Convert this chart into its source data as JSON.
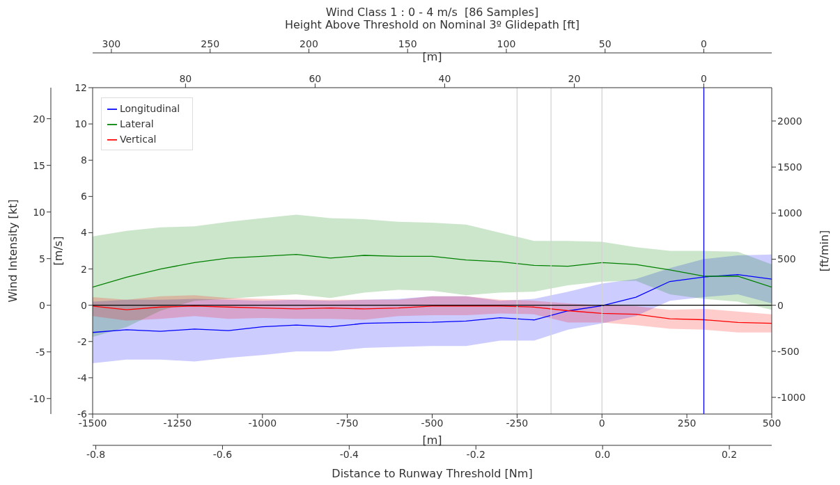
{
  "chart_data": {
    "type": "line",
    "title": "Wind Class 1 : 0 - 4 m/s  [86 Samples]",
    "xlabel": "[m]",
    "ylabel": "[m/s]",
    "y2label": "[ft/min]",
    "y3label": "Wind Intensity [kt]",
    "x2label": "Distance to Runway Threshold [Nm]",
    "annotations": [
      "Height Above Threshold on Nominal 3º Glidepath [ft]",
      "300",
      "250",
      "200",
      "150",
      "100",
      "50",
      "0",
      "[m]",
      "80",
      "60",
      "40",
      "20",
      "0"
    ],
    "x": [
      -1500,
      -1400,
      -1300,
      -1200,
      -1100,
      -1000,
      -900,
      -800,
      -700,
      -600,
      -500,
      -400,
      -300,
      -200,
      -100,
      0,
      100,
      200,
      300,
      400,
      500
    ],
    "series": [
      {
        "name": "Longitudinal",
        "color": "#0000ff",
        "values": [
          -1.5,
          -1.35,
          -1.44,
          -1.31,
          -1.4,
          -1.19,
          -1.09,
          -1.19,
          -1.0,
          -0.96,
          -0.94,
          -0.87,
          -0.69,
          -0.81,
          -0.31,
          -0.03,
          0.44,
          1.31,
          1.56,
          1.69,
          1.44
        ],
        "lower": [
          -3.2,
          -3.0,
          -3.0,
          -3.1,
          -2.9,
          -2.75,
          -2.55,
          -2.55,
          -2.35,
          -2.3,
          -2.25,
          -2.25,
          -1.95,
          -1.95,
          -1.35,
          -1.0,
          -0.6,
          0.25,
          0.45,
          0.6,
          0.1
        ],
        "upper": [
          0.2,
          0.3,
          0.3,
          0.35,
          0.3,
          0.25,
          0.3,
          0.25,
          0.3,
          0.35,
          0.5,
          0.5,
          0.25,
          0.35,
          0.75,
          1.2,
          1.45,
          2.05,
          2.55,
          2.75,
          2.8
        ]
      },
      {
        "name": "Lateral",
        "color": "#008000",
        "values": [
          1.0,
          1.55,
          2.0,
          2.35,
          2.6,
          2.7,
          2.8,
          2.6,
          2.75,
          2.7,
          2.7,
          2.5,
          2.4,
          2.2,
          2.15,
          2.35,
          2.25,
          1.95,
          1.6,
          1.6,
          1.0
        ],
        "lower": [
          -1.75,
          -1.2,
          -0.3,
          0.25,
          0.35,
          0.5,
          0.6,
          0.4,
          0.7,
          0.85,
          0.8,
          0.55,
          0.7,
          0.75,
          1.1,
          1.3,
          1.35,
          0.6,
          0.35,
          0.2,
          -0.25
        ],
        "upper": [
          3.8,
          4.1,
          4.3,
          4.35,
          4.6,
          4.8,
          5.0,
          4.8,
          4.75,
          4.6,
          4.55,
          4.45,
          4.0,
          3.55,
          3.55,
          3.5,
          3.2,
          3.0,
          3.0,
          2.95,
          2.25
        ]
      },
      {
        "name": "Vertical",
        "color": "#ff0000",
        "values": [
          -0.05,
          -0.25,
          -0.1,
          -0.05,
          -0.1,
          -0.15,
          -0.2,
          -0.15,
          -0.2,
          -0.15,
          -0.05,
          -0.05,
          -0.05,
          -0.1,
          -0.3,
          -0.45,
          -0.5,
          -0.75,
          -0.8,
          -0.95,
          -1.0
        ],
        "lower": [
          -0.6,
          -0.85,
          -0.75,
          -0.6,
          -0.75,
          -0.7,
          -0.75,
          -0.75,
          -0.8,
          -0.6,
          -0.55,
          -0.55,
          -0.45,
          -0.5,
          -0.95,
          -0.95,
          -1.1,
          -1.3,
          -1.35,
          -1.5,
          -1.5
        ],
        "upper": [
          0.45,
          0.3,
          0.5,
          0.55,
          0.4,
          0.35,
          0.3,
          0.3,
          0.3,
          0.3,
          0.5,
          0.5,
          0.3,
          0.25,
          0.1,
          0.0,
          -0.05,
          -0.25,
          -0.2,
          -0.35,
          -0.5
        ]
      }
    ],
    "xlim": [
      -1500,
      500
    ],
    "xticks": [
      -1500,
      -1250,
      -1000,
      -750,
      -500,
      -250,
      0,
      250,
      500
    ],
    "x2lim": [
      -0.805,
      0.267
    ],
    "x2ticks": [
      -0.8,
      -0.6,
      -0.4,
      -0.2,
      {
        "value": 0,
        "label": "0.0"
      },
      0.2
    ],
    "ylim": [
      -6,
      12
    ],
    "yticks": [
      -6,
      -4,
      -2,
      0,
      2,
      4,
      6,
      8,
      10,
      12
    ],
    "y2lim": [
      -1181,
      2362
    ],
    "y2ticks": [
      -1000,
      -500,
      0,
      500,
      1000,
      1500,
      2000
    ],
    "y3lim": [
      -11.66,
      23.33
    ],
    "y3ticks": [
      -10,
      -5,
      0,
      5,
      10,
      15,
      20
    ],
    "ref_lines": [
      {
        "axis": "x",
        "value": -250,
        "color": "#d3d3d3"
      },
      {
        "axis": "x",
        "value": -150,
        "color": "#d3d3d3"
      },
      {
        "axis": "x",
        "value": 0,
        "color": "#d3d3d3"
      },
      {
        "axis": "x",
        "value": 300,
        "color": "#0000ff"
      },
      {
        "axis": "y",
        "value": 0,
        "color": "#000000"
      }
    ],
    "legend": "top left",
    "marker": "none",
    "line_style": "solid"
  }
}
